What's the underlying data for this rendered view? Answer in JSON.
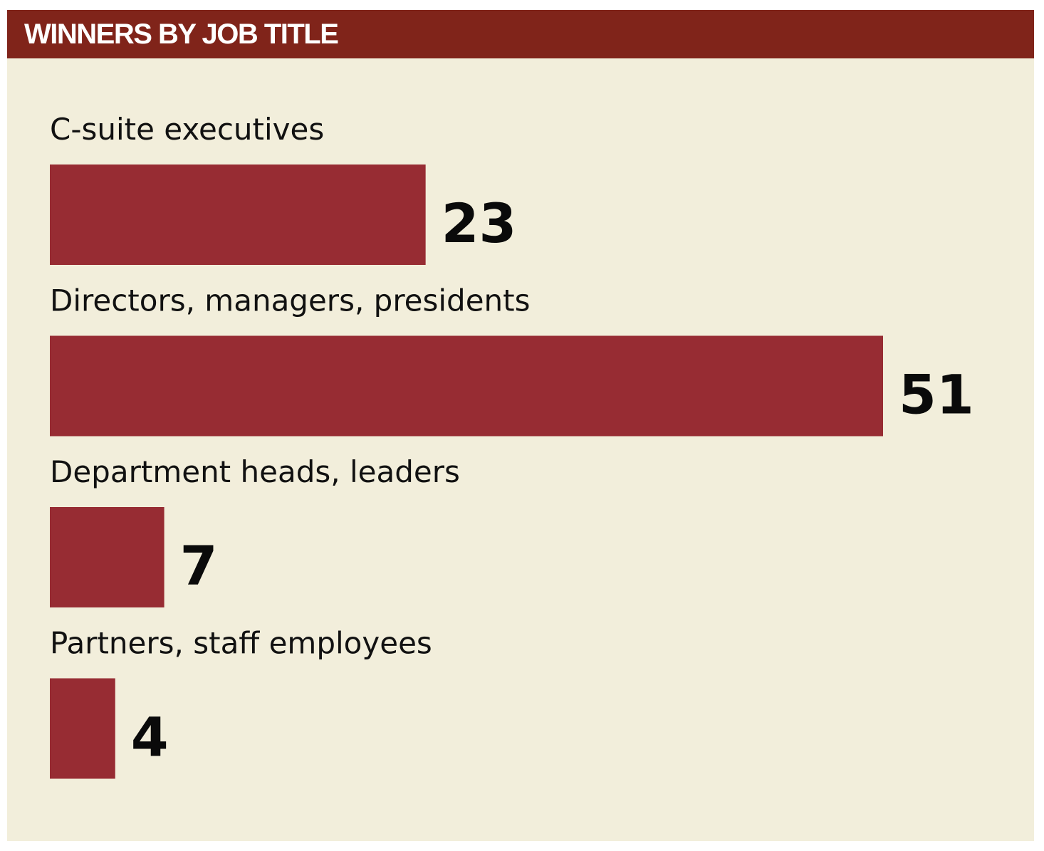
{
  "header": {
    "title": "WINNERS BY JOB TITLE"
  },
  "colors": {
    "header_bg": "#80241a",
    "panel_bg": "#f2eedb",
    "bar": "#972c33"
  },
  "chart_data": {
    "type": "bar",
    "orientation": "horizontal",
    "title": "WINNERS BY JOB TITLE",
    "categories": [
      "C-suite executives",
      "Directors, managers, presidents",
      "Department heads, leaders",
      "Partners, staff employees"
    ],
    "values": [
      23,
      51,
      7,
      4
    ],
    "value_labels": [
      "23",
      "51",
      "7",
      "4"
    ],
    "xlabel": "",
    "ylabel": "",
    "grid": false,
    "legend": "none"
  }
}
